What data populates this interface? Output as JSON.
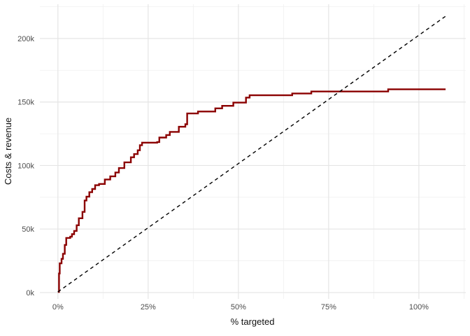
{
  "figure": {
    "background": "#ffffff",
    "type_hint": "cumulative gains / profit curve"
  },
  "chart_data": {
    "type": "line",
    "title": "",
    "xlabel": "% targeted",
    "ylabel": "Costs & revenue",
    "xlim": [
      -5,
      113
    ],
    "ylim": [
      -5,
      227
    ],
    "grid": {
      "on": true,
      "major_color": "#e5e5e5",
      "minor_color": "#f0f0f0",
      "x_major": [
        0,
        25,
        50,
        75,
        100
      ],
      "x_minor": [
        12.5,
        37.5,
        62.5,
        87.5,
        112.5
      ],
      "y_major": [
        0,
        50,
        100,
        150,
        200
      ],
      "y_minor": [
        25,
        75,
        125,
        175,
        225
      ]
    },
    "axes": {
      "x": {
        "ticks": [
          {
            "value": 0,
            "label": "0%"
          },
          {
            "value": 25,
            "label": "25%"
          },
          {
            "value": 50,
            "label": "50%"
          },
          {
            "value": 75,
            "label": "75%"
          },
          {
            "value": 100,
            "label": "100%"
          }
        ]
      },
      "y": {
        "units": "thousands",
        "ticks": [
          {
            "value": 0,
            "label": "0k"
          },
          {
            "value": 50,
            "label": "50k"
          },
          {
            "value": 100,
            "label": "100k"
          },
          {
            "value": 150,
            "label": "150k"
          },
          {
            "value": 200,
            "label": "200k"
          }
        ]
      }
    },
    "legend": {
      "shown": false
    },
    "series": [
      {
        "name": "cumulative-revenue-step-curve",
        "color": "#8B0000",
        "width": 2.4,
        "style": "solid",
        "interpolation": "step-after",
        "points_pct_vs_k": [
          [
            0,
            0.5
          ],
          [
            0.3,
            15
          ],
          [
            0.5,
            23
          ],
          [
            1.0,
            26.5
          ],
          [
            1.4,
            30.5
          ],
          [
            1.9,
            37.5
          ],
          [
            2.3,
            43
          ],
          [
            3.4,
            44
          ],
          [
            3.9,
            46
          ],
          [
            4.5,
            48.5
          ],
          [
            5.2,
            53
          ],
          [
            5.8,
            58.5
          ],
          [
            6.8,
            63.5
          ],
          [
            7.4,
            72.5
          ],
          [
            7.9,
            75.5
          ],
          [
            8.7,
            79
          ],
          [
            9.5,
            81.5
          ],
          [
            10.3,
            84.5
          ],
          [
            11.4,
            85.5
          ],
          [
            13.0,
            89
          ],
          [
            14.5,
            91.5
          ],
          [
            15.9,
            94.5
          ],
          [
            16.9,
            98
          ],
          [
            18.4,
            102.5
          ],
          [
            20.2,
            106.5
          ],
          [
            21.1,
            109
          ],
          [
            22.1,
            112
          ],
          [
            22.7,
            116
          ],
          [
            23.3,
            118
          ],
          [
            27.5,
            118.5
          ],
          [
            28.1,
            122
          ],
          [
            30.0,
            124
          ],
          [
            31.0,
            126.5
          ],
          [
            33.5,
            130.5
          ],
          [
            35.3,
            132.5
          ],
          [
            35.8,
            141
          ],
          [
            38.8,
            142.5
          ],
          [
            43.6,
            145
          ],
          [
            45.5,
            147
          ],
          [
            48.6,
            149.5
          ],
          [
            52.1,
            153.5
          ],
          [
            53.1,
            155.3
          ],
          [
            64.9,
            156.7
          ],
          [
            70.2,
            158.3
          ],
          [
            91.5,
            160
          ],
          [
            107.4,
            160
          ]
        ]
      },
      {
        "name": "baseline-cost-diagonal",
        "color": "#000000",
        "width": 1.4,
        "style": "dashed",
        "dash": "5,4.5",
        "interpolation": "linear",
        "points_pct_vs_k": [
          [
            0,
            0.5
          ],
          [
            107.4,
            217.5
          ]
        ]
      }
    ]
  }
}
